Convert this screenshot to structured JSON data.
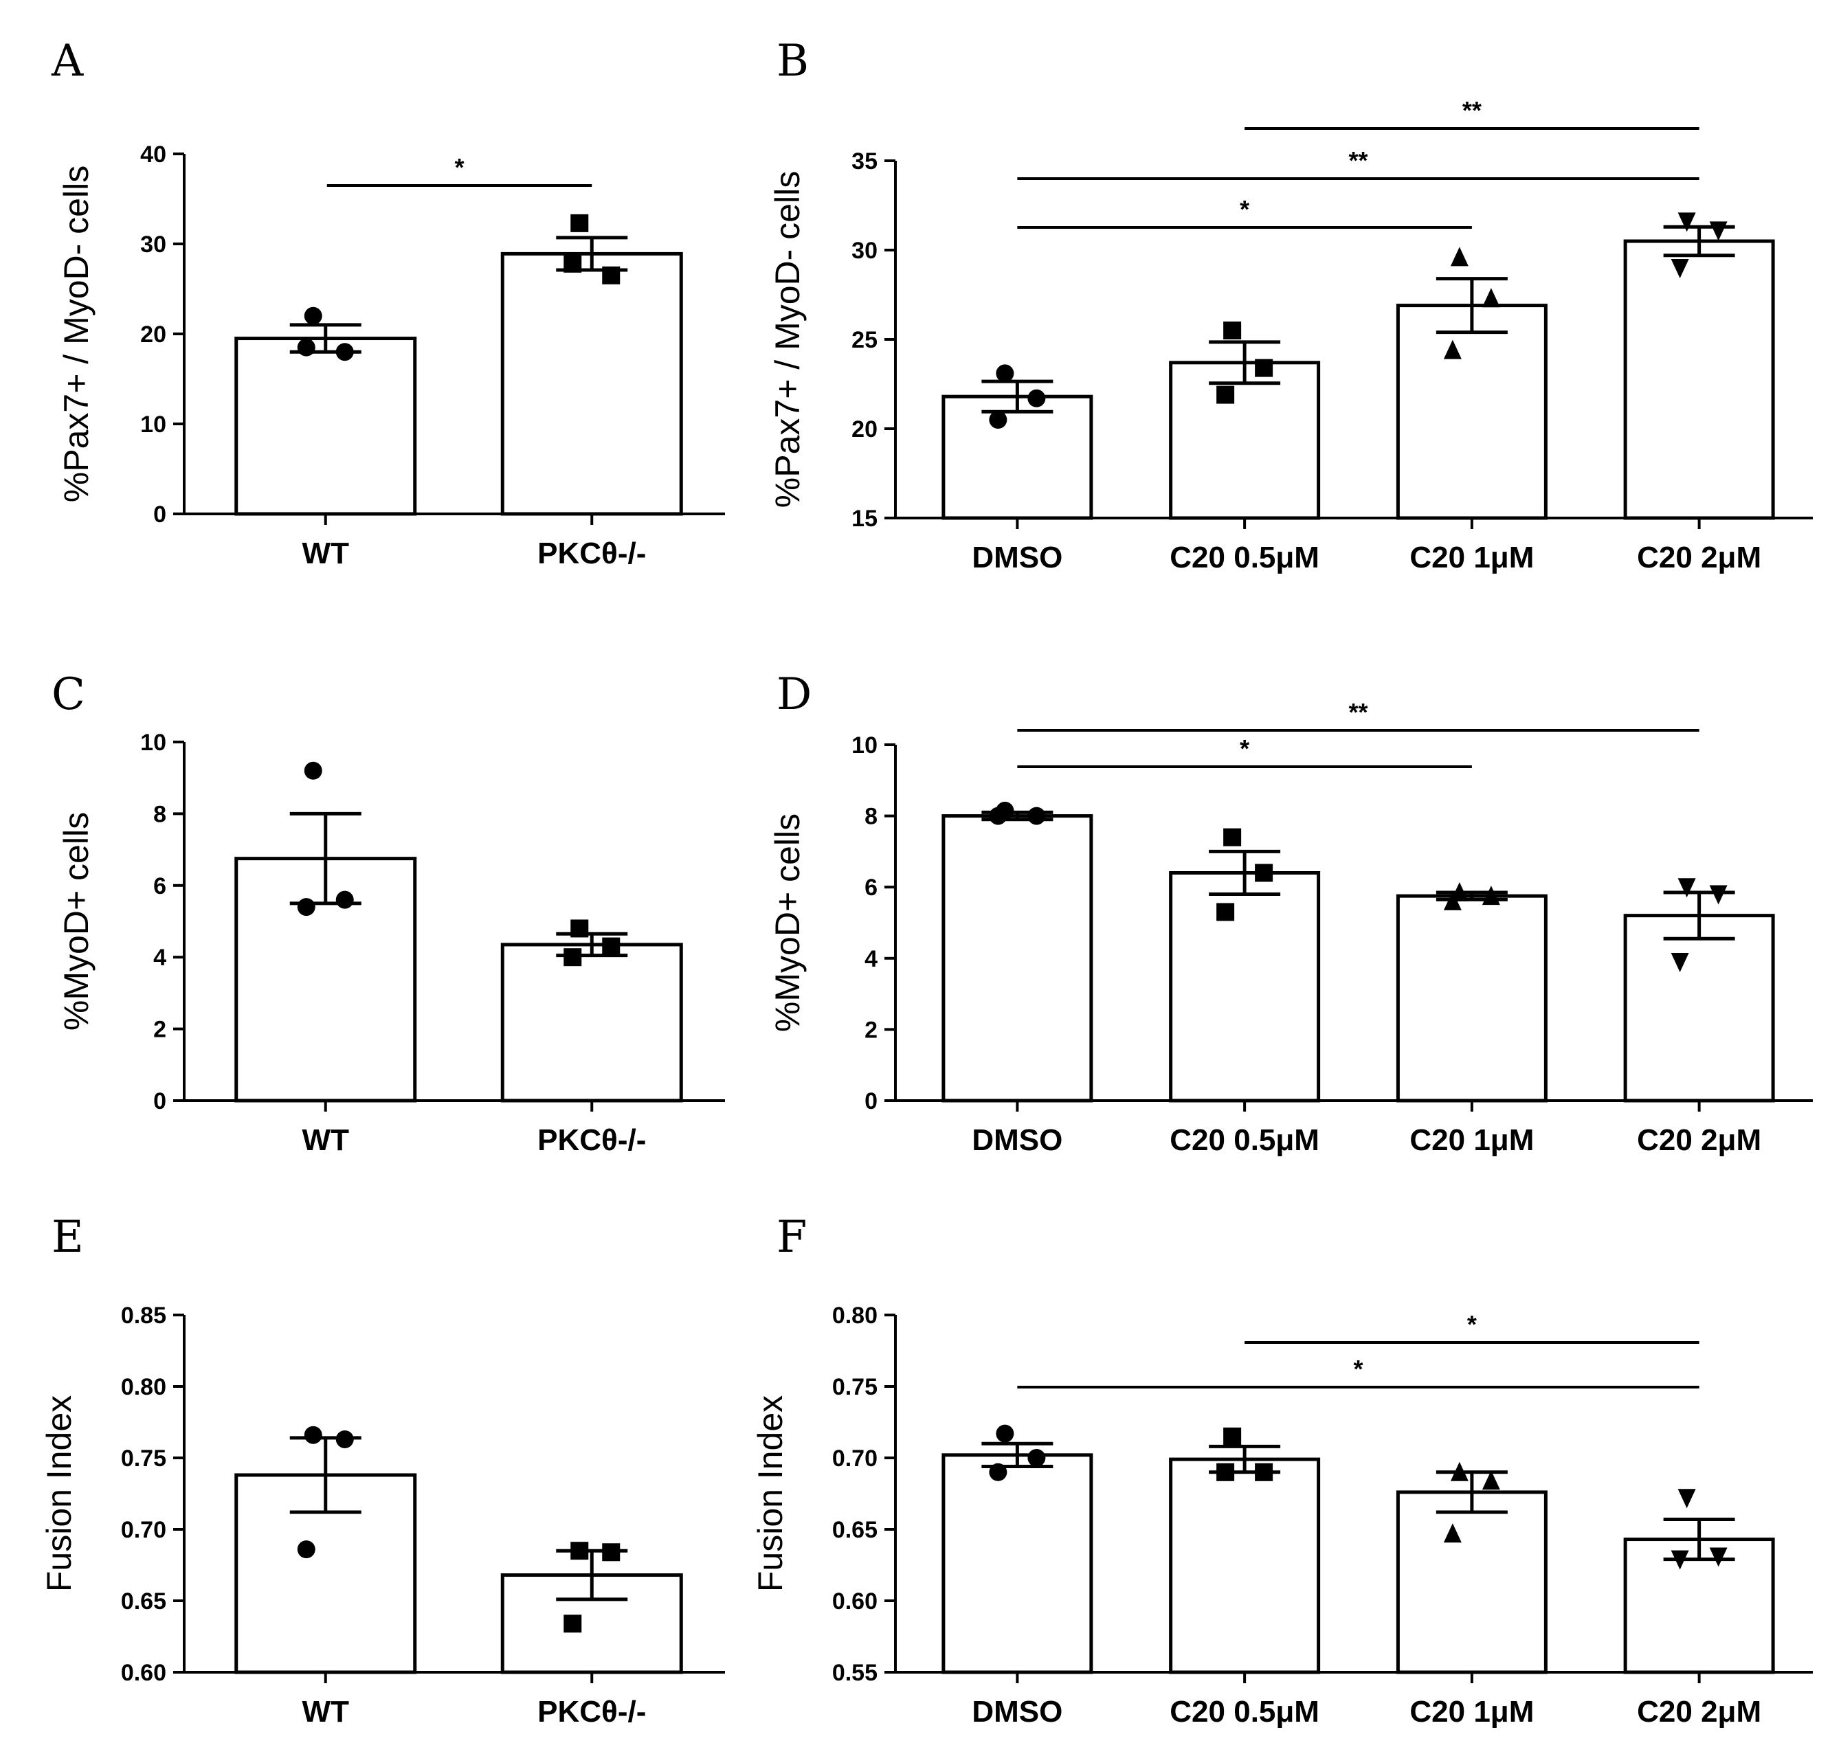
{
  "chart_data": [
    {
      "panel": "A",
      "type": "bar",
      "ylabel": "%Pax7+ / MyoD- cells",
      "ylim": [
        0,
        40
      ],
      "yticks": [
        0,
        10,
        20,
        30,
        40
      ],
      "categories": [
        "WT",
        "PKCθ-/-"
      ],
      "values": [
        19.5,
        28.9
      ],
      "errors": [
        1.5,
        1.8
      ],
      "markers": [
        "circle",
        "square"
      ],
      "points": [
        [
          22.0,
          18.0,
          18.5
        ],
        [
          32.3,
          26.5,
          27.8
        ]
      ],
      "significance": [
        {
          "from": 0,
          "to": 1,
          "label": "*"
        }
      ]
    },
    {
      "panel": "B",
      "type": "bar",
      "ylabel": "%Pax7+ / MyoD- cells",
      "ylim": [
        15,
        35
      ],
      "yticks": [
        15,
        20,
        25,
        30,
        35
      ],
      "categories": [
        "DMSO",
        "C20 0.5μM",
        "C20 1μM",
        "C20 2μM"
      ],
      "values": [
        21.8,
        23.7,
        26.9,
        30.5
      ],
      "errors": [
        0.85,
        1.15,
        1.5,
        0.8
      ],
      "markers": [
        "circle",
        "square",
        "triangle-up",
        "triangle-down"
      ],
      "points": [
        [
          23.1,
          21.7,
          20.5
        ],
        [
          25.5,
          23.4,
          21.9
        ],
        [
          29.6,
          27.3,
          24.4
        ],
        [
          31.6,
          31.1,
          29.0
        ]
      ],
      "significance": [
        {
          "from": 0,
          "to": 2,
          "label": "*"
        },
        {
          "from": 0,
          "to": 3,
          "label": "**"
        },
        {
          "from": 1,
          "to": 3,
          "label": "**"
        }
      ]
    },
    {
      "panel": "C",
      "type": "bar",
      "ylabel": "%MyoD+ cells",
      "ylim": [
        0,
        10
      ],
      "yticks": [
        0,
        2,
        4,
        6,
        8,
        10
      ],
      "categories": [
        "WT",
        "PKCθ-/-"
      ],
      "values": [
        6.75,
        4.35
      ],
      "errors": [
        1.25,
        0.3
      ],
      "markers": [
        "circle",
        "square"
      ],
      "points": [
        [
          9.2,
          5.6,
          5.4
        ],
        [
          4.8,
          4.3,
          4.0
        ]
      ],
      "significance": []
    },
    {
      "panel": "D",
      "type": "bar",
      "ylabel": "%MyoD+ cells",
      "ylim": [
        0,
        10
      ],
      "yticks": [
        0,
        2,
        4,
        6,
        8,
        10
      ],
      "categories": [
        "DMSO",
        "C20 0.5μM",
        "C20 1μM",
        "C20 2μM"
      ],
      "values": [
        8.0,
        6.4,
        5.75,
        5.2
      ],
      "errors": [
        0.1,
        0.6,
        0.1,
        0.65
      ],
      "markers": [
        "circle",
        "square",
        "triangle-up",
        "triangle-down"
      ],
      "points": [
        [
          8.15,
          8.0,
          8.0
        ],
        [
          7.4,
          6.4,
          5.3
        ],
        [
          5.85,
          5.75,
          5.6
        ],
        [
          6.0,
          5.8,
          3.9
        ]
      ],
      "significance": [
        {
          "from": 0,
          "to": 2,
          "label": "*"
        },
        {
          "from": 0,
          "to": 3,
          "label": "**"
        }
      ]
    },
    {
      "panel": "E",
      "type": "bar",
      "ylabel": "Fusion Index",
      "ylim": [
        0.6,
        0.85
      ],
      "yticks": [
        0.6,
        0.65,
        0.7,
        0.75,
        0.8,
        0.85
      ],
      "tick_decimals": 2,
      "categories": [
        "WT",
        "PKCθ-/-"
      ],
      "values": [
        0.738,
        0.668
      ],
      "errors": [
        0.026,
        0.017
      ],
      "markers": [
        "circle",
        "square"
      ],
      "points": [
        [
          0.766,
          0.763,
          0.686
        ],
        [
          0.685,
          0.684,
          0.634
        ]
      ],
      "significance": []
    },
    {
      "panel": "F",
      "type": "bar",
      "ylabel": "Fusion Index",
      "ylim": [
        0.55,
        0.8
      ],
      "yticks": [
        0.55,
        0.6,
        0.65,
        0.7,
        0.75,
        0.8
      ],
      "tick_decimals": 2,
      "categories": [
        "DMSO",
        "C20 0.5μM",
        "C20 1μM",
        "C20 2μM"
      ],
      "values": [
        0.702,
        0.699,
        0.676,
        0.643
      ],
      "errors": [
        0.008,
        0.009,
        0.014,
        0.014
      ],
      "markers": [
        "circle",
        "square",
        "triangle-up",
        "triangle-down"
      ],
      "points": [
        [
          0.717,
          0.7,
          0.69
        ],
        [
          0.715,
          0.69,
          0.69
        ],
        [
          0.69,
          0.684,
          0.647
        ],
        [
          0.672,
          0.631,
          0.629
        ]
      ],
      "significance": [
        {
          "from": 0,
          "to": 3,
          "label": "*"
        },
        {
          "from": 1,
          "to": 3,
          "label": "*"
        }
      ]
    }
  ]
}
